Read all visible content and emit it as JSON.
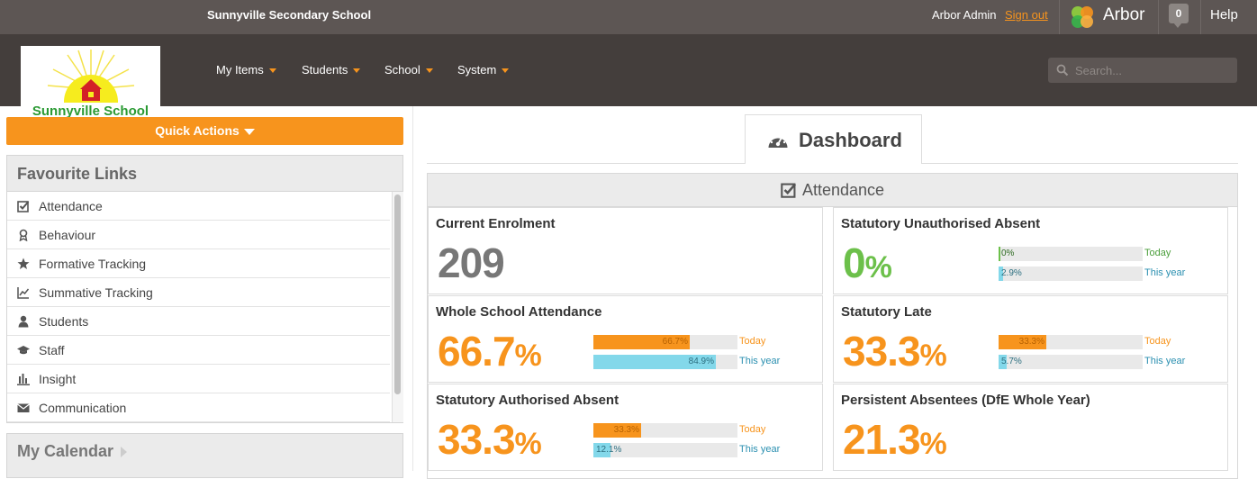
{
  "topbar": {
    "school_name": "Sunnyville Secondary School",
    "user": "Arbor Admin",
    "signout": "Sign out",
    "brand": "Arbor",
    "notifications": "0",
    "help": "Help"
  },
  "logo": {
    "text": "Sunnyville School"
  },
  "nav": {
    "items": [
      {
        "label": "My Items"
      },
      {
        "label": "Students"
      },
      {
        "label": "School"
      },
      {
        "label": "System"
      }
    ],
    "search_placeholder": "Search..."
  },
  "sidebar": {
    "quick_actions": "Quick Actions",
    "favourites_title": "Favourite Links",
    "favourites": [
      {
        "label": "Attendance",
        "icon": "check-square-icon"
      },
      {
        "label": "Behaviour",
        "icon": "award-icon"
      },
      {
        "label": "Formative Tracking",
        "icon": "star-icon"
      },
      {
        "label": "Summative Tracking",
        "icon": "line-chart-icon"
      },
      {
        "label": "Students",
        "icon": "user-icon"
      },
      {
        "label": "Staff",
        "icon": "graduation-cap-icon"
      },
      {
        "label": "Insight",
        "icon": "bar-chart-icon"
      },
      {
        "label": "Communication",
        "icon": "envelope-icon"
      }
    ],
    "calendar_title": "My Calendar"
  },
  "main": {
    "tab_title": "Dashboard",
    "section_title": "Attendance",
    "colors": {
      "orange": "#f7941d",
      "blue": "#83d8ea",
      "green": "#6cc04a"
    },
    "stats": {
      "enrolment": {
        "label": "Current Enrolment",
        "value": "209"
      },
      "unauth": {
        "label": "Statutory Unauthorised Absent",
        "value": "0",
        "unit": "%",
        "today": {
          "text": "0%",
          "fraction": 0.0,
          "tag": "Today"
        },
        "year": {
          "text": "2.9%",
          "fraction": 0.029,
          "tag": "This year"
        }
      },
      "attendance": {
        "label": "Whole School Attendance",
        "value": "66.7",
        "unit": "%",
        "today": {
          "text": "66.7%",
          "fraction": 0.667,
          "tag": "Today"
        },
        "year": {
          "text": "84.9%",
          "fraction": 0.849,
          "tag": "This year"
        }
      },
      "late": {
        "label": "Statutory Late",
        "value": "33.3",
        "unit": "%",
        "today": {
          "text": "33.3%",
          "fraction": 0.333,
          "tag": "Today"
        },
        "year": {
          "text": "5.7%",
          "fraction": 0.057,
          "tag": "This year"
        }
      },
      "auth": {
        "label": "Statutory Authorised Absent",
        "value": "33.3",
        "unit": "%",
        "today": {
          "text": "33.3%",
          "fraction": 0.333,
          "tag": "Today"
        },
        "year": {
          "text": "12.1%",
          "fraction": 0.121,
          "tag": "This year"
        }
      },
      "persistent": {
        "label": "Persistent Absentees (DfE Whole Year)",
        "value": "21.3",
        "unit": "%"
      }
    }
  }
}
